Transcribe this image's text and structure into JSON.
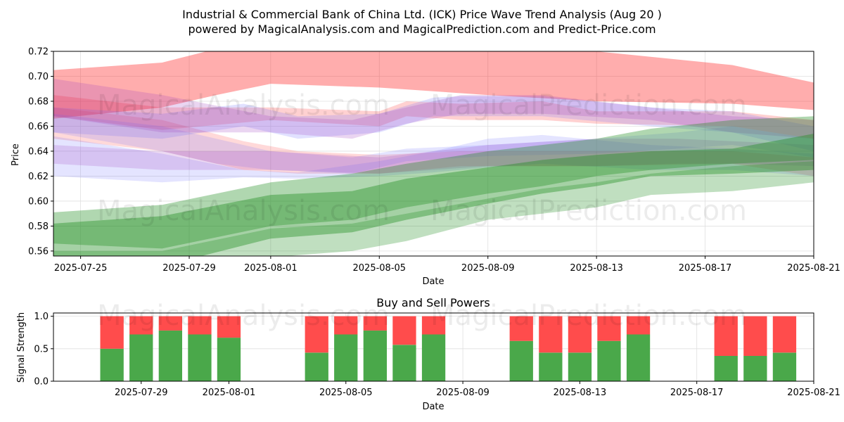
{
  "header": {
    "title": "Industrial & Commercial Bank of China Ltd. (ICK) Price Wave Trend Analysis (Aug 20 )",
    "subtitle": "powered by MagicalAnalysis.com and MagicalPrediction.com and Predict-Price.com"
  },
  "watermarks": {
    "left": "MagicalAnalysis.com",
    "right": "MagicalPrediction.com"
  },
  "colors": {
    "red": "#ff0000",
    "blue": "#6a6aff",
    "purple": "#a040c0",
    "green": "#1e8c1e",
    "buy": "#4aa84a",
    "sell": "#ff4c4c",
    "grid": "#e0e0e0"
  },
  "chart_data": [
    {
      "type": "area",
      "name": "price-wave",
      "xlabel": "Date",
      "ylabel": "Price",
      "xlim": [
        "2025-07-24",
        "2025-08-21"
      ],
      "ylim": [
        0.556,
        0.72
      ],
      "x_ticks": [
        "2025-07-25",
        "2025-07-29",
        "2025-08-01",
        "2025-08-05",
        "2025-08-09",
        "2025-08-13",
        "2025-08-17",
        "2025-08-21"
      ],
      "y_ticks": [
        "0.56",
        "0.58",
        "0.60",
        "0.62",
        "0.64",
        "0.66",
        "0.68",
        "0.70",
        "0.72"
      ],
      "grid": true,
      "series": [
        {
          "name": "red-upper",
          "color": "red",
          "opacity": 0.32,
          "x": [
            "2025-07-24",
            "2025-07-28",
            "2025-07-30",
            "2025-08-01",
            "2025-08-05",
            "2025-08-09",
            "2025-08-13",
            "2025-08-18",
            "2025-08-21"
          ],
          "upper": [
            0.705,
            0.711,
            0.722,
            0.722,
            0.722,
            0.722,
            0.72,
            0.709,
            0.695
          ],
          "lower": [
            0.666,
            0.675,
            0.685,
            0.694,
            0.691,
            0.685,
            0.68,
            0.678,
            0.673
          ]
        },
        {
          "name": "red-mid",
          "color": "red",
          "opacity": 0.18,
          "x": [
            "2025-07-24",
            "2025-07-28",
            "2025-08-01",
            "2025-08-05",
            "2025-08-06",
            "2025-08-08",
            "2025-08-11",
            "2025-08-13",
            "2025-08-18",
            "2025-08-21"
          ],
          "upper": [
            0.685,
            0.675,
            0.675,
            0.672,
            0.68,
            0.678,
            0.68,
            0.672,
            0.672,
            0.665
          ],
          "lower": [
            0.668,
            0.657,
            0.665,
            0.66,
            0.668,
            0.665,
            0.665,
            0.662,
            0.66,
            0.65
          ]
        },
        {
          "name": "red-low",
          "color": "red",
          "opacity": 0.15,
          "x": [
            "2025-07-24",
            "2025-07-28",
            "2025-07-31",
            "2025-08-02",
            "2025-08-05",
            "2025-08-08",
            "2025-08-13",
            "2025-08-18",
            "2025-08-21"
          ],
          "upper": [
            0.675,
            0.665,
            0.648,
            0.64,
            0.637,
            0.64,
            0.64,
            0.64,
            0.635
          ],
          "lower": [
            0.65,
            0.64,
            0.625,
            0.622,
            0.622,
            0.628,
            0.628,
            0.63,
            0.62
          ]
        },
        {
          "name": "blue-1",
          "color": "blue",
          "opacity": 0.2,
          "x": [
            "2025-07-24",
            "2025-07-28",
            "2025-07-31",
            "2025-08-02",
            "2025-08-05",
            "2025-08-07",
            "2025-08-08",
            "2025-08-11",
            "2025-08-15",
            "2025-08-18",
            "2025-08-21"
          ],
          "upper": [
            0.675,
            0.67,
            0.678,
            0.668,
            0.67,
            0.683,
            0.684,
            0.684,
            0.675,
            0.672,
            0.66
          ],
          "lower": [
            0.655,
            0.65,
            0.66,
            0.65,
            0.655,
            0.668,
            0.668,
            0.668,
            0.66,
            0.655,
            0.64
          ]
        },
        {
          "name": "blue-2",
          "color": "blue",
          "opacity": 0.18,
          "x": [
            "2025-07-24",
            "2025-07-28",
            "2025-07-31",
            "2025-08-02",
            "2025-08-05",
            "2025-08-07",
            "2025-08-09",
            "2025-08-11",
            "2025-08-15",
            "2025-08-18",
            "2025-08-21"
          ],
          "upper": [
            0.652,
            0.638,
            0.625,
            0.623,
            0.632,
            0.64,
            0.65,
            0.653,
            0.645,
            0.642,
            0.638
          ],
          "lower": [
            0.62,
            0.615,
            0.619,
            0.618,
            0.62,
            0.623,
            0.627,
            0.63,
            0.625,
            0.625,
            0.62
          ]
        },
        {
          "name": "blue-3",
          "color": "blue",
          "opacity": 0.18,
          "x": [
            "2025-07-24",
            "2025-07-28",
            "2025-07-30",
            "2025-08-01",
            "2025-08-04",
            "2025-08-06",
            "2025-08-09",
            "2025-08-13",
            "2025-08-16",
            "2025-08-18",
            "2025-08-21"
          ],
          "upper": [
            0.67,
            0.66,
            0.65,
            0.64,
            0.635,
            0.642,
            0.645,
            0.65,
            0.655,
            0.66,
            0.65
          ],
          "lower": [
            0.655,
            0.64,
            0.63,
            0.625,
            0.622,
            0.632,
            0.636,
            0.638,
            0.642,
            0.645,
            0.635
          ]
        },
        {
          "name": "purple-1",
          "color": "purple",
          "opacity": 0.22,
          "x": [
            "2025-07-24",
            "2025-07-28",
            "2025-08-01",
            "2025-08-04",
            "2025-08-06",
            "2025-08-08",
            "2025-08-11",
            "2025-08-15",
            "2025-08-18",
            "2025-08-21"
          ],
          "upper": [
            0.698,
            0.685,
            0.668,
            0.665,
            0.675,
            0.685,
            0.685,
            0.675,
            0.668,
            0.665
          ],
          "lower": [
            0.668,
            0.655,
            0.655,
            0.65,
            0.662,
            0.67,
            0.67,
            0.665,
            0.655,
            0.65
          ]
        },
        {
          "name": "purple-2",
          "color": "purple",
          "opacity": 0.2,
          "x": [
            "2025-07-24",
            "2025-07-28",
            "2025-08-01",
            "2025-08-05",
            "2025-08-09",
            "2025-08-13",
            "2025-08-16",
            "2025-08-18",
            "2025-08-21"
          ],
          "upper": [
            0.645,
            0.64,
            0.64,
            0.635,
            0.645,
            0.65,
            0.65,
            0.648,
            0.645
          ],
          "lower": [
            0.63,
            0.625,
            0.625,
            0.622,
            0.628,
            0.628,
            0.63,
            0.63,
            0.628
          ]
        },
        {
          "name": "green-1",
          "color": "green",
          "opacity": 0.35,
          "x": [
            "2025-07-24",
            "2025-07-28",
            "2025-08-01",
            "2025-08-04",
            "2025-08-06",
            "2025-08-09",
            "2025-08-11",
            "2025-08-13",
            "2025-08-15",
            "2025-08-18",
            "2025-08-21"
          ],
          "upper": [
            0.591,
            0.597,
            0.615,
            0.622,
            0.63,
            0.64,
            0.645,
            0.65,
            0.658,
            0.665,
            0.668
          ],
          "lower": [
            0.566,
            0.562,
            0.58,
            0.585,
            0.595,
            0.606,
            0.612,
            0.62,
            0.625,
            0.63,
            0.633
          ]
        },
        {
          "name": "green-2",
          "color": "green",
          "opacity": 0.4,
          "x": [
            "2025-07-24",
            "2025-07-28",
            "2025-08-01",
            "2025-08-04",
            "2025-08-06",
            "2025-08-09",
            "2025-08-11",
            "2025-08-13",
            "2025-08-15",
            "2025-08-18",
            "2025-08-21"
          ],
          "upper": [
            0.582,
            0.588,
            0.605,
            0.608,
            0.618,
            0.627,
            0.633,
            0.637,
            0.64,
            0.642,
            0.654
          ],
          "lower": [
            0.541,
            0.548,
            0.57,
            0.575,
            0.585,
            0.598,
            0.606,
            0.612,
            0.62,
            0.622,
            0.625
          ]
        },
        {
          "name": "green-3",
          "color": "green",
          "opacity": 0.28,
          "x": [
            "2025-07-24",
            "2025-07-28",
            "2025-08-01",
            "2025-08-04",
            "2025-08-06",
            "2025-08-09",
            "2025-08-11",
            "2025-08-13",
            "2025-08-15",
            "2025-08-18",
            "2025-08-21"
          ],
          "upper": [
            0.56,
            0.56,
            0.578,
            0.582,
            0.59,
            0.602,
            0.61,
            0.615,
            0.622,
            0.628,
            0.632
          ],
          "lower": [
            0.54,
            0.54,
            0.555,
            0.56,
            0.568,
            0.585,
            0.59,
            0.595,
            0.605,
            0.608,
            0.615
          ]
        }
      ]
    },
    {
      "type": "bar",
      "name": "buy-sell-powers",
      "title": "Buy and Sell Powers",
      "xlabel": "Date",
      "ylabel": "Signal Strength",
      "ylim": [
        0,
        1.05
      ],
      "y_ticks": [
        "0.0",
        "0.5",
        "1.0"
      ],
      "x_ticks": [
        "2025-07-29",
        "2025-08-01",
        "2025-08-05",
        "2025-08-09",
        "2025-08-13",
        "2025-08-17",
        "2025-08-21"
      ],
      "xlim": [
        "2025-07-26",
        "2025-08-21"
      ],
      "grid": true,
      "categories": [
        "2025-07-28",
        "2025-07-29",
        "2025-07-30",
        "2025-07-31",
        "2025-08-01",
        "2025-08-04",
        "2025-08-05",
        "2025-08-06",
        "2025-08-07",
        "2025-08-08",
        "2025-08-11",
        "2025-08-12",
        "2025-08-13",
        "2025-08-14",
        "2025-08-15",
        "2025-08-18",
        "2025-08-19",
        "2025-08-20"
      ],
      "series": [
        {
          "name": "Buy",
          "color": "buy",
          "values": [
            0.5,
            0.72,
            0.78,
            0.72,
            0.67,
            0.44,
            0.72,
            0.78,
            0.56,
            0.72,
            0.62,
            0.44,
            0.44,
            0.62,
            0.72,
            0.39,
            0.39,
            0.44
          ]
        },
        {
          "name": "Sell",
          "color": "sell",
          "values": [
            0.5,
            0.28,
            0.22,
            0.28,
            0.33,
            0.56,
            0.28,
            0.22,
            0.44,
            0.28,
            0.38,
            0.56,
            0.56,
            0.38,
            0.28,
            0.61,
            0.61,
            0.56
          ]
        }
      ]
    }
  ]
}
